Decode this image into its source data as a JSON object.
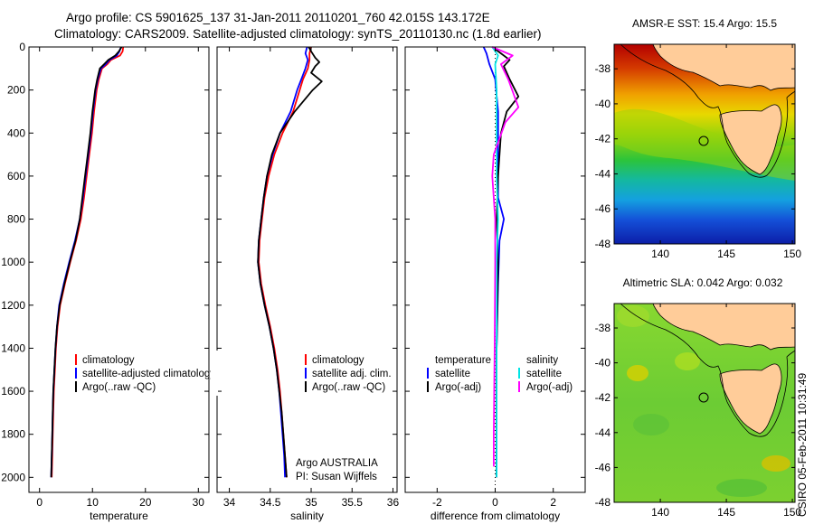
{
  "header": {
    "line1": "Argo profile: CS 5901625_137 31-Jan-2011 20110201_760 42.015S 143.172E",
    "line2": "Climatology: CARS2009. Satellite-adjusted climatology: synTS_20110130.nc (1.8d earlier)"
  },
  "side_label": "CSIRO 05-Feb-2011 10:31:49",
  "colors": {
    "red": "#ff0000",
    "blue": "#0000ff",
    "black": "#000000",
    "cyan": "#00e5e5",
    "magenta": "#ff00ff",
    "land": "#ffcc99"
  },
  "chart_data": [
    {
      "type": "line",
      "id": "temperature",
      "xlabel": "temperature",
      "ylabel": "",
      "xlim": [
        -2,
        32
      ],
      "ylim": [
        2070,
        0
      ],
      "xticks": [
        0,
        10,
        20,
        30
      ],
      "yticks": [
        0,
        200,
        400,
        600,
        800,
        1000,
        1200,
        1400,
        1600,
        1800,
        2000
      ],
      "legend": {
        "placement": "lower-center",
        "entries": [
          {
            "name": "climatology",
            "color": "#ff0000"
          },
          {
            "name": "satellite-adjusted climatology",
            "color": "#0000ff"
          },
          {
            "name": "Argo(..raw -QC)",
            "color": "#000000"
          }
        ]
      },
      "series": [
        {
          "name": "climatology",
          "color": "#ff0000",
          "points": [
            [
              15.8,
              0
            ],
            [
              15.7,
              20
            ],
            [
              15.2,
              40
            ],
            [
              13.5,
              60
            ],
            [
              12.8,
              80
            ],
            [
              11.8,
              100
            ],
            [
              11.2,
              150
            ],
            [
              10.8,
              200
            ],
            [
              10.3,
              300
            ],
            [
              9.9,
              400
            ],
            [
              9.4,
              500
            ],
            [
              8.9,
              600
            ],
            [
              8.4,
              700
            ],
            [
              7.8,
              800
            ],
            [
              6.9,
              900
            ],
            [
              5.8,
              1000
            ],
            [
              4.8,
              1100
            ],
            [
              3.9,
              1200
            ],
            [
              3.4,
              1300
            ],
            [
              3.1,
              1400
            ],
            [
              2.9,
              1500
            ],
            [
              2.7,
              1600
            ],
            [
              2.6,
              1700
            ],
            [
              2.5,
              1800
            ],
            [
              2.4,
              1900
            ],
            [
              2.3,
              2000
            ]
          ]
        },
        {
          "name": "satellite-adjusted climatology",
          "color": "#0000ff",
          "points": [
            [
              15.4,
              0
            ],
            [
              15.1,
              20
            ],
            [
              14.6,
              40
            ],
            [
              13.2,
              60
            ],
            [
              12.5,
              80
            ],
            [
              11.6,
              100
            ],
            [
              11.0,
              150
            ],
            [
              10.6,
              200
            ],
            [
              10.1,
              300
            ],
            [
              9.7,
              400
            ],
            [
              9.2,
              500
            ],
            [
              8.7,
              600
            ],
            [
              8.2,
              700
            ],
            [
              7.6,
              800
            ],
            [
              6.7,
              900
            ],
            [
              5.6,
              1000
            ],
            [
              4.6,
              1100
            ],
            [
              3.7,
              1200
            ],
            [
              3.3,
              1300
            ],
            [
              3.0,
              1400
            ],
            [
              2.8,
              1500
            ],
            [
              2.6,
              1600
            ],
            [
              2.5,
              1700
            ],
            [
              2.4,
              1800
            ],
            [
              2.3,
              1900
            ],
            [
              2.2,
              2000
            ]
          ]
        },
        {
          "name": "Argo(..raw -QC)",
          "color": "#000000",
          "points": [
            [
              15.5,
              0
            ],
            [
              15.0,
              20
            ],
            [
              14.3,
              40
            ],
            [
              13.0,
              60
            ],
            [
              12.2,
              80
            ],
            [
              11.4,
              100
            ],
            [
              10.9,
              150
            ],
            [
              10.5,
              200
            ],
            [
              10.0,
              300
            ],
            [
              9.6,
              400
            ],
            [
              9.1,
              500
            ],
            [
              8.6,
              600
            ],
            [
              8.1,
              700
            ],
            [
              7.6,
              800
            ],
            [
              6.8,
              900
            ],
            [
              5.7,
              1000
            ],
            [
              4.7,
              1100
            ],
            [
              3.8,
              1200
            ],
            [
              3.3,
              1300
            ],
            [
              3.0,
              1400
            ],
            [
              2.8,
              1500
            ],
            [
              2.6,
              1600
            ],
            [
              2.5,
              1700
            ],
            [
              2.4,
              1800
            ],
            [
              2.3,
              1900
            ],
            [
              2.2,
              2000
            ]
          ]
        }
      ]
    },
    {
      "type": "line",
      "id": "salinity",
      "xlabel": "salinity",
      "ylabel": "",
      "xlim": [
        33.85,
        36.05
      ],
      "ylim": [
        2070,
        0
      ],
      "xticks": [
        34,
        34.5,
        35,
        35.5,
        36
      ],
      "yticks": [
        0,
        200,
        400,
        600,
        800,
        1000,
        1200,
        1400,
        1600,
        1800,
        2000
      ],
      "legend": {
        "placement": "lower-center",
        "entries": [
          {
            "name": "climatology",
            "color": "#ff0000"
          },
          {
            "name": "satellite adj. clim.",
            "color": "#0000ff"
          },
          {
            "name": "Argo(..raw -QC)",
            "color": "#000000"
          }
        ]
      },
      "annotation": [
        "Argo AUSTRALIA",
        "PI: Susan Wijffels"
      ],
      "series": [
        {
          "name": "climatology",
          "color": "#ff0000",
          "points": [
            [
              35.0,
              0
            ],
            [
              34.98,
              30
            ],
            [
              34.98,
              60
            ],
            [
              34.96,
              100
            ],
            [
              34.9,
              150
            ],
            [
              34.86,
              200
            ],
            [
              34.78,
              300
            ],
            [
              34.65,
              400
            ],
            [
              34.55,
              500
            ],
            [
              34.48,
              600
            ],
            [
              34.43,
              700
            ],
            [
              34.4,
              800
            ],
            [
              34.37,
              900
            ],
            [
              34.36,
              1000
            ],
            [
              34.39,
              1100
            ],
            [
              34.44,
              1200
            ],
            [
              34.5,
              1300
            ],
            [
              34.55,
              1400
            ],
            [
              34.59,
              1500
            ],
            [
              34.62,
              1600
            ],
            [
              34.64,
              1700
            ],
            [
              34.66,
              1800
            ],
            [
              34.68,
              1900
            ],
            [
              34.7,
              2000
            ]
          ]
        },
        {
          "name": "satellite adj. clim.",
          "color": "#0000ff",
          "points": [
            [
              34.95,
              0
            ],
            [
              34.93,
              30
            ],
            [
              34.96,
              60
            ],
            [
              34.93,
              100
            ],
            [
              34.88,
              150
            ],
            [
              34.83,
              200
            ],
            [
              34.75,
              300
            ],
            [
              34.62,
              400
            ],
            [
              34.53,
              500
            ],
            [
              34.46,
              600
            ],
            [
              34.42,
              700
            ],
            [
              34.39,
              800
            ],
            [
              34.36,
              900
            ],
            [
              34.35,
              1000
            ],
            [
              34.38,
              1100
            ],
            [
              34.43,
              1200
            ],
            [
              34.49,
              1300
            ],
            [
              34.54,
              1400
            ],
            [
              34.58,
              1500
            ],
            [
              34.61,
              1600
            ],
            [
              34.63,
              1700
            ],
            [
              34.65,
              1800
            ],
            [
              34.67,
              1900
            ],
            [
              34.68,
              2000
            ]
          ]
        },
        {
          "name": "Argo(..raw -QC)",
          "color": "#000000",
          "points": [
            [
              34.97,
              0
            ],
            [
              35.0,
              20
            ],
            [
              35.05,
              50
            ],
            [
              35.1,
              70
            ],
            [
              35.05,
              90
            ],
            [
              35.0,
              120
            ],
            [
              35.13,
              160
            ],
            [
              35.02,
              200
            ],
            [
              34.8,
              300
            ],
            [
              34.62,
              400
            ],
            [
              34.52,
              500
            ],
            [
              34.46,
              600
            ],
            [
              34.42,
              700
            ],
            [
              34.39,
              800
            ],
            [
              34.36,
              900
            ],
            [
              34.35,
              1000
            ],
            [
              34.38,
              1100
            ],
            [
              34.43,
              1200
            ],
            [
              34.49,
              1300
            ],
            [
              34.54,
              1400
            ],
            [
              34.58,
              1500
            ],
            [
              34.61,
              1600
            ],
            [
              34.64,
              1700
            ],
            [
              34.66,
              1800
            ],
            [
              34.68,
              1900
            ],
            [
              34.7,
              2000
            ]
          ]
        }
      ]
    },
    {
      "type": "line",
      "id": "difference",
      "xlabel": "difference from climatology",
      "ylabel": "",
      "xlim": [
        -3.1,
        3.1
      ],
      "ylim": [
        2070,
        0
      ],
      "xticks": [
        -2,
        0,
        2
      ],
      "yticks": [
        0,
        200,
        400,
        600,
        800,
        1000,
        1200,
        1400,
        1600,
        1800,
        2000
      ],
      "legend": {
        "placement": "lower-center",
        "columns": [
          {
            "title": "temperature",
            "entries": [
              {
                "name": "satellite",
                "color": "#0000ff"
              },
              {
                "name": "Argo(-adj)",
                "color": "#000000"
              }
            ]
          },
          {
            "title": "salinity",
            "entries": [
              {
                "name": "satellite",
                "color": "#00e5e5"
              },
              {
                "name": "Argo(-adj)",
                "color": "#ff00ff"
              }
            ]
          }
        ]
      },
      "series": [
        {
          "name": "temperature satellite",
          "color": "#0000ff",
          "points": [
            [
              -0.4,
              0
            ],
            [
              -0.3,
              30
            ],
            [
              -0.2,
              80
            ],
            [
              0,
              150
            ],
            [
              0.1,
              300
            ],
            [
              0.1,
              500
            ],
            [
              0.1,
              700
            ],
            [
              0.3,
              800
            ],
            [
              0.15,
              900
            ],
            [
              0.1,
              1100
            ],
            [
              0.05,
              1400
            ],
            [
              0.05,
              1700
            ],
            [
              0.05,
              2000
            ]
          ]
        },
        {
          "name": "temperature Argo(-adj)",
          "color": "#000000",
          "points": [
            [
              -0.1,
              0
            ],
            [
              0.2,
              30
            ],
            [
              0.5,
              60
            ],
            [
              0.3,
              90
            ],
            [
              0.5,
              150
            ],
            [
              0.8,
              230
            ],
            [
              0.4,
              300
            ],
            [
              0.2,
              400
            ],
            [
              0.1,
              600
            ],
            [
              0.05,
              800
            ],
            [
              0.1,
              1000
            ],
            [
              0.05,
              1400
            ],
            [
              0.05,
              1700
            ],
            [
              0.05,
              2000
            ]
          ]
        },
        {
          "name": "salinity satellite",
          "color": "#00e5e5",
          "points": [
            [
              -0.1,
              0
            ],
            [
              0.1,
              40
            ],
            [
              0.0,
              80
            ],
            [
              0.05,
              200
            ],
            [
              0.05,
              400
            ],
            [
              0.05,
              600
            ],
            [
              0.1,
              800
            ],
            [
              0.05,
              1000
            ],
            [
              0.05,
              1400
            ],
            [
              0.05,
              1800
            ],
            [
              0.05,
              2000
            ]
          ]
        },
        {
          "name": "salinity Argo(-adj)",
          "color": "#ff00ff",
          "points": [
            [
              -0.1,
              0
            ],
            [
              0.6,
              40
            ],
            [
              0.2,
              80
            ],
            [
              0.45,
              150
            ],
            [
              0.8,
              280
            ],
            [
              0.35,
              350
            ],
            [
              -0.05,
              500
            ],
            [
              -0.1,
              600
            ],
            [
              0.0,
              800
            ],
            [
              0.0,
              1000
            ],
            [
              -0.02,
              1400
            ],
            [
              -0.05,
              1800
            ],
            [
              -0.05,
              1950
            ]
          ]
        }
      ]
    },
    {
      "type": "heatmap",
      "id": "sst-map",
      "title": "AMSR-E SST: 15.4 Argo: 15.5",
      "xlim": [
        136.5,
        150.2
      ],
      "ylim": [
        -48,
        -36.6
      ],
      "xticks": [
        140,
        145,
        150
      ],
      "yticks": [
        -38,
        -40,
        -42,
        -44,
        -46,
        -48
      ],
      "argo_location": [
        143.172,
        -42.015
      ]
    },
    {
      "type": "heatmap",
      "id": "sla-map",
      "title": "Altimetric SLA: 0.042 Argo: 0.032",
      "xlim": [
        136.5,
        150.2
      ],
      "ylim": [
        -48,
        -36.6
      ],
      "xticks": [
        140,
        145,
        150
      ],
      "yticks": [
        -38,
        -40,
        -42,
        -44,
        -46,
        -48
      ],
      "argo_location": [
        143.172,
        -42.015
      ]
    }
  ]
}
